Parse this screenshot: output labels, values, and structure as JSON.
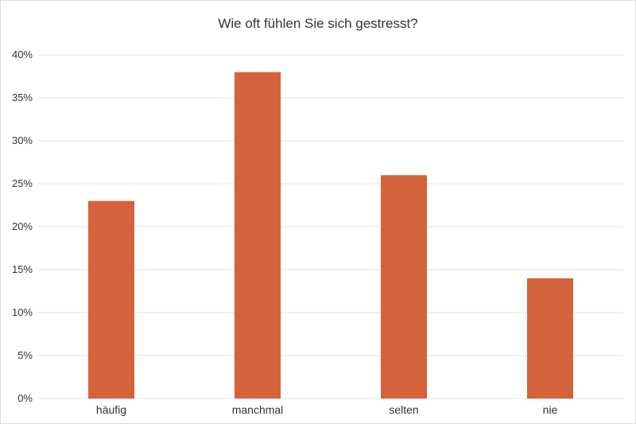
{
  "chart_data": {
    "type": "bar",
    "title": "Wie oft fühlen Sie sich gestresst?",
    "categories": [
      "häufig",
      "manchmal",
      "selten",
      "nie"
    ],
    "values": [
      23,
      38,
      26,
      14
    ],
    "unit": "%",
    "y_ticks": [
      "0%",
      "5%",
      "10%",
      "15%",
      "20%",
      "25%",
      "30%",
      "35%",
      "40%"
    ],
    "ylim": [
      0,
      40
    ],
    "grid": true,
    "legend": "none",
    "bar_color": "#d4623a",
    "grid_color": "#e3e3e3"
  }
}
